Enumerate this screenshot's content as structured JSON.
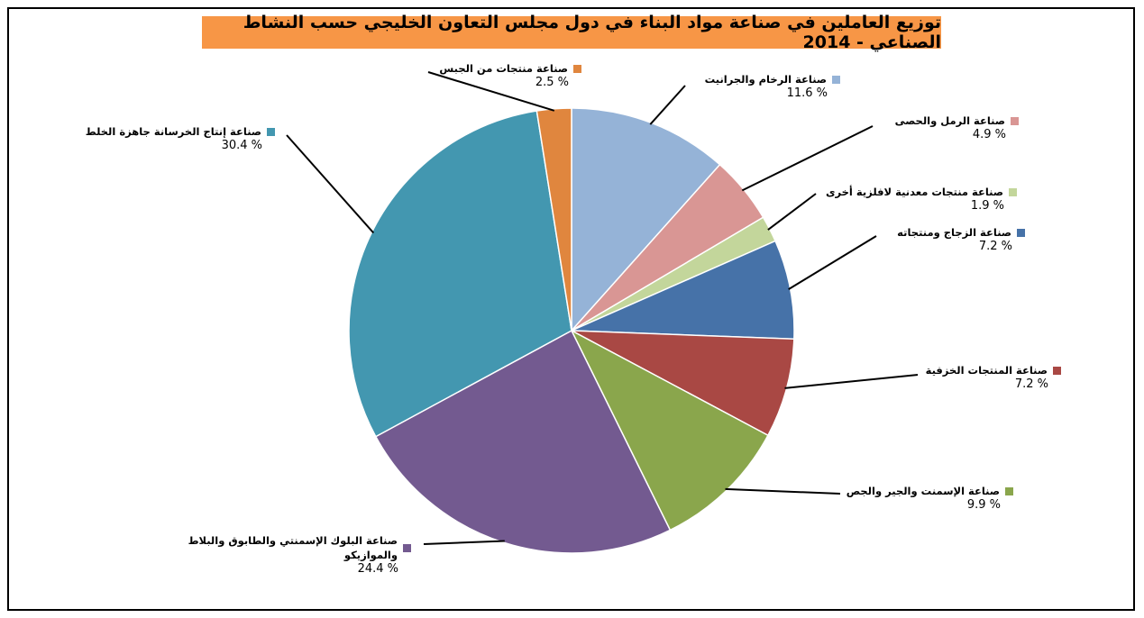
{
  "title": "توزيع العاملين في صناعة مواد البناء في دول مجلس التعاون الخليجي حسب النشاط الصناعي - 2014",
  "chart_data": {
    "type": "pie",
    "title": "توزيع العاملين في صناعة مواد البناء في دول مجلس التعاون الخليجي حسب النشاط الصناعي - 2014",
    "start_angle_deg": 0,
    "direction": "clockwise",
    "slices": [
      {
        "name": "صناعة الرخام والجرانيت",
        "value": 11.6,
        "label": "11.6 %",
        "color": "#95b3d7"
      },
      {
        "name": "صناعة الرمل والحصى",
        "value": 4.9,
        "label": "4.9 %",
        "color": "#d99694"
      },
      {
        "name": "صناعة منتجات معدنية لافلزية أخرى",
        "value": 1.9,
        "label": "1.9 %",
        "color": "#c3d69b"
      },
      {
        "name": "صناعة الزجاج ومنتجاته",
        "value": 7.2,
        "label": "7.2 %",
        "color": "#4672a8"
      },
      {
        "name": "صناعة المنتجات الخزفية",
        "value": 7.2,
        "label": "7.2 %",
        "color": "#a94844"
      },
      {
        "name": "صناعة الإسمنت والجير والجص",
        "value": 9.9,
        "label": "9.9 %",
        "color": "#8aa64c"
      },
      {
        "name": "صناعة البلوك الإسمنتي والطابوق والبلاط والموازيكو",
        "value": 24.4,
        "label": "24.4 %",
        "color": "#735a90"
      },
      {
        "name": "صناعة إنتاج الخرسانة جاهزة الخلط",
        "value": 30.4,
        "label": "30.4 %",
        "color": "#4397b0"
      },
      {
        "name": "صناعة منتجات من الجبس",
        "value": 2.5,
        "label": "2.5 %",
        "color": "#e0863e"
      }
    ]
  }
}
